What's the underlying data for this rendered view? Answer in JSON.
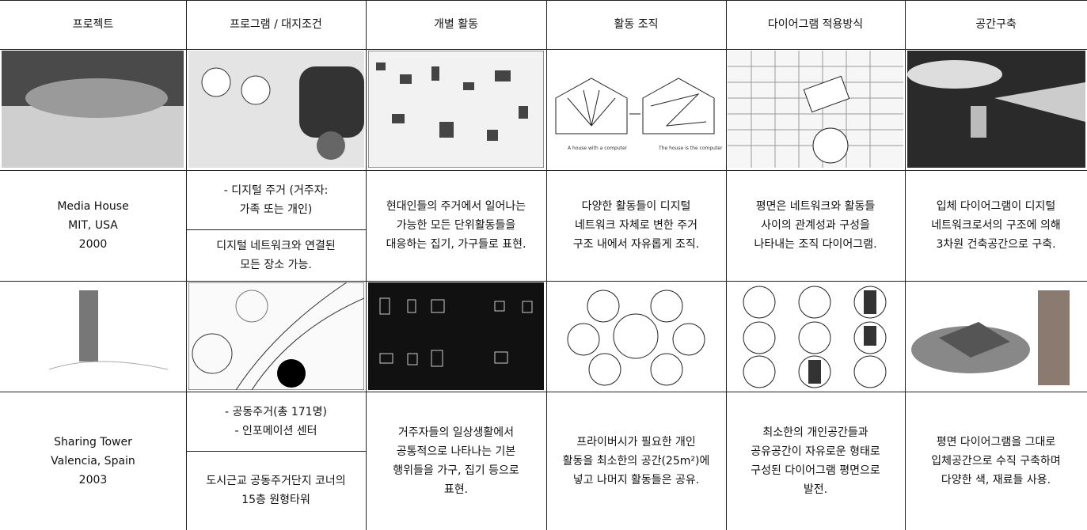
{
  "header": [
    "프로젝트",
    "프로그램 / 대지조건",
    "개별 활동",
    "활동 조직",
    "다이어그램 적용방식",
    "공간구축"
  ],
  "projects": [
    {
      "project": [
        "Media House",
        "MIT, USA",
        "2000"
      ],
      "program": [
        "- 디지털 주거 (거주자:",
        "가족 또는 개인)"
      ],
      "site": [
        "디지털 네트워크와 연결된",
        "모든 장소 가능."
      ],
      "activity": [
        "현대인들의 주거에서 일어나는",
        "가능한 모든 단위활동들을",
        "대응하는 집기, 가구들로 표현."
      ],
      "organization": [
        "다양한 활동들이 디지털",
        "네트워크 자체로 변한 주거",
        "구조 내에서 자유롭게 조직."
      ],
      "diagram": [
        "평면은 네트워크와 활동들",
        "사이의 관계성과 구성을",
        "나타내는 조직 다이어그램."
      ],
      "space": [
        "입체 다이어그램이 디지털",
        "네트워크로서의 구조에 의해",
        "3차원 건축공간으로 구축."
      ],
      "image_captions": [
        "A house with a computer",
        "The house is the computer"
      ]
    },
    {
      "project": [
        "Sharing Tower",
        "Valencia, Spain",
        "2003"
      ],
      "program": [
        "- 공동주거(총 171명)",
        "- 인포메이션 센터"
      ],
      "site": [
        "도시근교 공동주거단지 코너의",
        "15층 원형타워"
      ],
      "activity": [
        "거주자들의 일상생활에서",
        "공통적으로 나타나는 기본",
        "행위들을 가구, 집기 등으로",
        "표현."
      ],
      "organization": [
        "프라이버시가 필요한 개인",
        "활동을 최소한의 공간(25m²)에",
        "넣고 나머지 활동들은 공유."
      ],
      "diagram": [
        "최소한의 개인공간들과",
        "공유공간이 자유로운 형태로",
        "구성된 다이어그램 평면으로",
        "발전."
      ],
      "space": [
        "평면 다이어그램을 그대로",
        "입체공간으로 수직 구축하며",
        "다양한 색, 재료들 사용."
      ]
    }
  ]
}
